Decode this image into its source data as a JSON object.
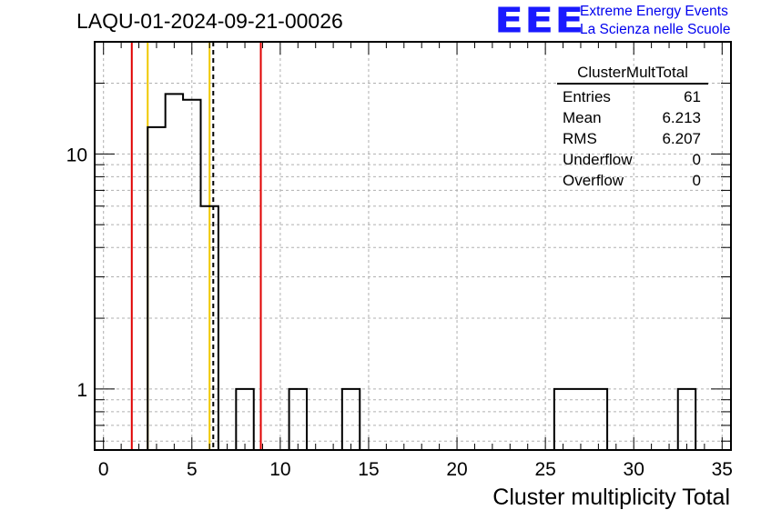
{
  "run_title": "LAQU-01-2024-09-21-00026",
  "logo": {
    "mark": "EEE",
    "line1": "Extreme Energy Events",
    "line2": "La Scienza nelle Scuole",
    "color": "#1a1aff"
  },
  "stats_box": {
    "title": "ClusterMultTotal",
    "rows": [
      {
        "label": "Entries",
        "value": "61"
      },
      {
        "label": "Mean",
        "value": "6.213"
      },
      {
        "label": "RMS",
        "value": "6.207"
      },
      {
        "label": "Underflow",
        "value": "0"
      },
      {
        "label": "Overflow",
        "value": "0"
      }
    ]
  },
  "chart_data": {
    "type": "bar",
    "style": "step-histogram",
    "title": "",
    "xlabel": "Cluster multiplicity Total",
    "ylabel": "",
    "xlim": [
      -0.5,
      35.5
    ],
    "ylim": [
      0.55,
      30
    ],
    "yscale": "log",
    "grid": true,
    "x_ticks": [
      0,
      5,
      10,
      15,
      20,
      25,
      30,
      35
    ],
    "y_ticks": [
      1,
      10
    ],
    "bin_width": 1,
    "bin_centers": [
      3,
      4,
      5,
      6,
      8,
      11,
      14,
      26,
      27,
      28,
      33
    ],
    "values": [
      13,
      18,
      17,
      6,
      1,
      1,
      1,
      1,
      1,
      1,
      1
    ],
    "vertical_lines": [
      {
        "x": 1.6,
        "color": "#e00000",
        "style": "solid"
      },
      {
        "x": 2.5,
        "color": "#f0c800",
        "style": "solid"
      },
      {
        "x": 6.0,
        "color": "#f0c800",
        "style": "solid"
      },
      {
        "x": 6.21,
        "color": "#000000",
        "style": "dashed"
      },
      {
        "x": 8.9,
        "color": "#e00000",
        "style": "solid"
      }
    ]
  }
}
